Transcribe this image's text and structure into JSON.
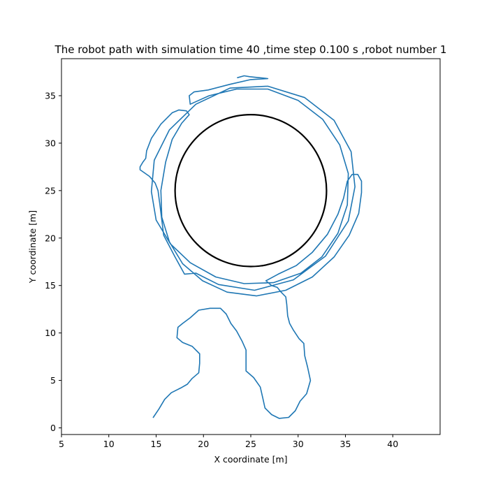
{
  "chart_data": {
    "type": "line",
    "title": "The robot path with simulation time 40 ,time step 0.100 s ,robot number 1",
    "xlabel": "X coordinate [m]",
    "ylabel": "Y coordinate [m]",
    "xlim": [
      5,
      45
    ],
    "ylim": [
      -0.7,
      38.9
    ],
    "xticks": [
      5,
      10,
      15,
      20,
      25,
      30,
      35,
      40
    ],
    "yticks": [
      0,
      5,
      10,
      15,
      20,
      25,
      30,
      35
    ],
    "grid": false,
    "colors": {
      "path": "#1f77b4",
      "obstacle": "#000000"
    },
    "obstacle": {
      "shape": "circle",
      "center": [
        25,
        25
      ],
      "radius": 8
    },
    "series": [
      {
        "points": [
          [
            14.7,
            1.1
          ],
          [
            15.3,
            2.0
          ],
          [
            15.9,
            3.0
          ],
          [
            16.6,
            3.7
          ],
          [
            17.6,
            4.2
          ],
          [
            18.3,
            4.6
          ],
          [
            18.8,
            5.2
          ],
          [
            19.5,
            5.8
          ],
          [
            19.6,
            6.8
          ],
          [
            19.6,
            7.8
          ],
          [
            18.8,
            8.6
          ],
          [
            17.8,
            9.0
          ],
          [
            17.2,
            9.5
          ],
          [
            17.3,
            10.6
          ],
          [
            17.8,
            11.0
          ],
          [
            18.6,
            11.6
          ],
          [
            19.5,
            12.4
          ],
          [
            20.7,
            12.6
          ],
          [
            21.8,
            12.6
          ],
          [
            22.4,
            12.0
          ],
          [
            22.9,
            11.0
          ],
          [
            23.5,
            10.2
          ],
          [
            24.1,
            9.1
          ],
          [
            24.5,
            8.2
          ],
          [
            24.5,
            7.0
          ],
          [
            24.5,
            6.0
          ],
          [
            25.3,
            5.3
          ],
          [
            26.0,
            4.3
          ],
          [
            26.3,
            3.0
          ],
          [
            26.5,
            2.1
          ],
          [
            27.2,
            1.4
          ],
          [
            28.0,
            1.0
          ],
          [
            29.0,
            1.1
          ],
          [
            29.7,
            1.8
          ],
          [
            30.2,
            2.8
          ],
          [
            30.9,
            3.6
          ],
          [
            31.3,
            5.0
          ],
          [
            31.0,
            6.4
          ],
          [
            30.7,
            7.6
          ],
          [
            30.6,
            8.9
          ],
          [
            30.1,
            9.4
          ],
          [
            29.5,
            10.3
          ],
          [
            29.1,
            11.0
          ],
          [
            28.9,
            11.8
          ],
          [
            28.8,
            13.0
          ],
          [
            28.7,
            13.8
          ],
          [
            28.2,
            14.3
          ],
          [
            27.8,
            14.8
          ],
          [
            27.2,
            15.0
          ],
          [
            26.6,
            15.5
          ],
          [
            27.9,
            16.2
          ],
          [
            29.8,
            17.1
          ],
          [
            31.5,
            18.5
          ],
          [
            33.1,
            20.4
          ],
          [
            34.2,
            22.5
          ],
          [
            34.8,
            24.2
          ],
          [
            35.2,
            26.0
          ],
          [
            35.7,
            26.7
          ],
          [
            36.3,
            26.7
          ],
          [
            36.7,
            26.0
          ],
          [
            36.7,
            24.8
          ],
          [
            36.4,
            22.6
          ],
          [
            35.4,
            20.3
          ],
          [
            33.8,
            18.0
          ],
          [
            31.5,
            15.9
          ],
          [
            28.7,
            14.5
          ],
          [
            25.6,
            13.9
          ],
          [
            22.5,
            14.3
          ],
          [
            19.9,
            15.5
          ],
          [
            17.8,
            17.3
          ],
          [
            16.4,
            19.6
          ],
          [
            15.6,
            22.2
          ],
          [
            15.5,
            25.0
          ],
          [
            16.0,
            28.0
          ],
          [
            16.7,
            30.4
          ],
          [
            17.7,
            32.1
          ],
          [
            18.5,
            33.0
          ],
          [
            18.2,
            33.4
          ],
          [
            17.4,
            33.5
          ],
          [
            16.7,
            33.2
          ],
          [
            15.5,
            32.0
          ],
          [
            14.5,
            30.5
          ],
          [
            14.0,
            29.2
          ],
          [
            13.9,
            28.4
          ],
          [
            13.6,
            28.0
          ],
          [
            13.3,
            27.5
          ],
          [
            13.3,
            27.2
          ],
          [
            14.3,
            26.5
          ],
          [
            14.9,
            25.8
          ],
          [
            15.2,
            25.0
          ],
          [
            15.4,
            23.5
          ],
          [
            15.8,
            20.3
          ],
          [
            17.0,
            18.0
          ],
          [
            18.0,
            16.2
          ],
          [
            19.2,
            16.3
          ],
          [
            21.6,
            15.1
          ],
          [
            25.4,
            14.5
          ],
          [
            29.5,
            15.6
          ],
          [
            32.9,
            18.1
          ],
          [
            35.3,
            21.8
          ],
          [
            36.0,
            25.4
          ],
          [
            35.6,
            29.1
          ],
          [
            33.8,
            32.4
          ],
          [
            30.7,
            34.8
          ],
          [
            26.8,
            36.0
          ],
          [
            22.8,
            35.8
          ],
          [
            19.2,
            34.1
          ],
          [
            16.4,
            31.4
          ],
          [
            14.8,
            28.2
          ],
          [
            14.5,
            24.9
          ],
          [
            15.0,
            21.9
          ],
          [
            16.5,
            19.4
          ],
          [
            18.6,
            17.4
          ],
          [
            21.3,
            15.9
          ],
          [
            24.3,
            15.2
          ],
          [
            27.4,
            15.3
          ],
          [
            30.3,
            16.3
          ],
          [
            32.5,
            18.0
          ],
          [
            34.2,
            20.5
          ],
          [
            35.2,
            23.5
          ],
          [
            35.3,
            26.8
          ],
          [
            34.4,
            29.8
          ],
          [
            32.6,
            32.5
          ],
          [
            30.0,
            34.5
          ],
          [
            26.8,
            35.7
          ],
          [
            23.5,
            35.7
          ],
          [
            20.6,
            35.0
          ],
          [
            18.6,
            34.1
          ],
          [
            18.5,
            35.0
          ],
          [
            19.0,
            35.4
          ],
          [
            20.5,
            35.6
          ],
          [
            22.8,
            36.2
          ],
          [
            25.0,
            36.7
          ],
          [
            26.8,
            36.8
          ],
          [
            24.9,
            37.0
          ],
          [
            24.3,
            37.1
          ],
          [
            23.6,
            36.9
          ]
        ]
      }
    ]
  }
}
